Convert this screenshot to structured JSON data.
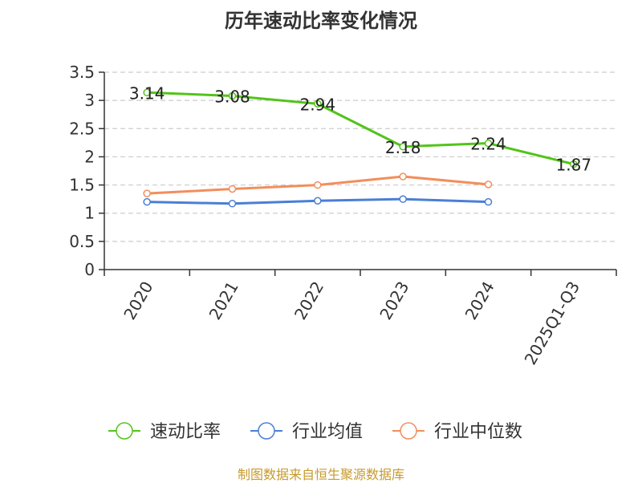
{
  "chart_data": {
    "type": "line",
    "title": "历年速动比率变化情况",
    "categories": [
      "2020",
      "2021",
      "2022",
      "2023",
      "2024",
      "2025Q1-Q3"
    ],
    "ylim": [
      0,
      3.5
    ],
    "yticks": [
      0,
      0.5,
      1,
      1.5,
      2,
      2.5,
      3,
      3.5
    ],
    "ytick_labels": [
      "0",
      "0.5",
      "1",
      "1.5",
      "2",
      "2.5",
      "3",
      "3.5"
    ],
    "grid": true,
    "legend_position": "bottom",
    "series": [
      {
        "name": "速动比率",
        "color": "#52c41a",
        "values": [
          3.14,
          3.08,
          2.94,
          2.18,
          2.24,
          1.87
        ],
        "labels": [
          "3.14",
          "3.08",
          "2.94",
          "2.18",
          "2.24",
          "1.87"
        ],
        "show_labels": true
      },
      {
        "name": "行业均值",
        "color": "#4a7fd6",
        "values": [
          1.2,
          1.17,
          1.22,
          1.25,
          1.2,
          null
        ],
        "show_labels": false
      },
      {
        "name": "行业中位数",
        "color": "#f28e5c",
        "values": [
          1.35,
          1.43,
          1.5,
          1.65,
          1.51,
          null
        ],
        "show_labels": false
      }
    ],
    "source": "制图数据来自恒生聚源数据库"
  }
}
